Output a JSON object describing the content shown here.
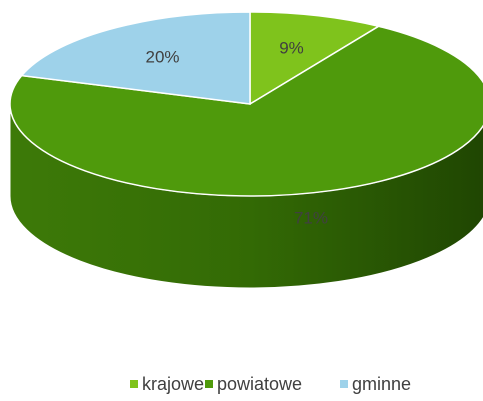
{
  "chart_data": {
    "type": "pie",
    "categories": [
      "krajowe",
      "powiatowe",
      "gminne"
    ],
    "values": [
      9,
      71,
      20
    ],
    "value_labels": [
      "9%",
      "71%",
      "20%"
    ],
    "colors": [
      "#7fc31c",
      "#4f9a0c",
      "#9ed2ea"
    ],
    "legend": "bottom"
  }
}
